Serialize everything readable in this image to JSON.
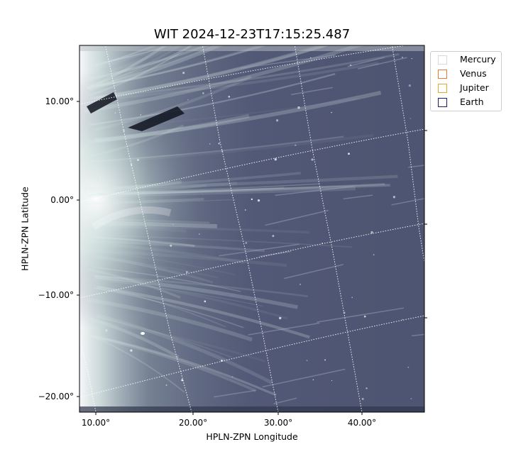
{
  "title": "WIT 2024-12-23T17:15:25.487",
  "axes": {
    "xlabel": "HPLN-ZPN Longitude",
    "ylabel": "HPLN-ZPN Latitude",
    "x_ticks": [
      "10.00°",
      "20.00°",
      "30.00°",
      "40.00°"
    ],
    "y_ticks": [
      "10.00°",
      "0.00°",
      "−10.00°",
      "−20.00°"
    ]
  },
  "legend": {
    "items": [
      {
        "label": "Mercury",
        "color": "#d9d9d9"
      },
      {
        "label": "Venus",
        "color": "#e07b39"
      },
      {
        "label": "Jupiter",
        "color": "#e0a92a"
      },
      {
        "label": "Earth",
        "color": "#1c1c6e"
      }
    ]
  },
  "image": {
    "colormap": [
      "#3f4560",
      "#5a6180",
      "#8a97a6",
      "#cfe0dc",
      "#ffffff"
    ],
    "grid": "on",
    "grid_style": "dotted white"
  }
}
